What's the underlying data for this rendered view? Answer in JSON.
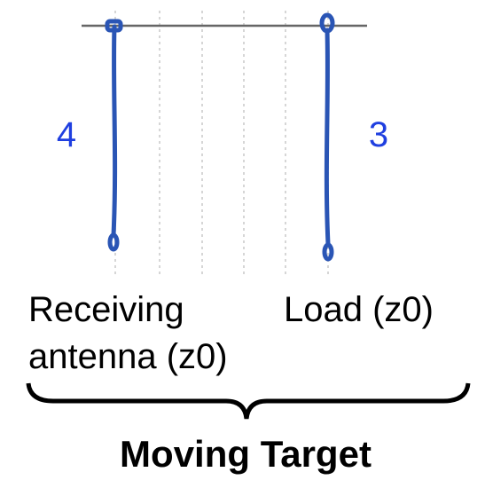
{
  "elements": [
    {
      "label": "4"
    },
    {
      "label": "3"
    },
    {
      "label": "Receiving",
      "label2": "antenna (z0)"
    },
    {
      "label": "Load (z0)"
    }
  ],
  "brace_label": "Moving Target"
}
